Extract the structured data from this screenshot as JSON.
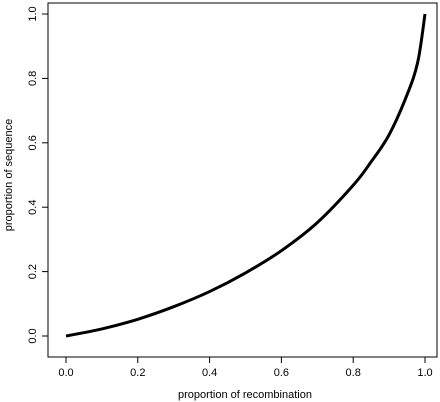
{
  "chart_data": {
    "type": "line",
    "title": "",
    "xlabel": "proportion of recombination",
    "ylabel": "proportion of sequence",
    "xlim": [
      0.0,
      1.0
    ],
    "ylim": [
      0.0,
      1.0
    ],
    "xticks": [
      "0.0",
      "0.2",
      "0.4",
      "0.6",
      "0.8",
      "1.0"
    ],
    "yticks": [
      "0.0",
      "0.2",
      "0.4",
      "0.6",
      "0.8",
      "1.0"
    ],
    "grid": false,
    "legend": "none",
    "line_color": "#000000",
    "series": [
      {
        "x": [
          0.0,
          0.1,
          0.2,
          0.3,
          0.4,
          0.5,
          0.6,
          0.7,
          0.8,
          0.85,
          0.9,
          0.95,
          0.98,
          1.0
        ],
        "y": [
          0.0,
          0.022,
          0.052,
          0.091,
          0.138,
          0.196,
          0.265,
          0.352,
          0.468,
          0.541,
          0.625,
          0.749,
          0.852,
          1.0
        ]
      }
    ]
  }
}
